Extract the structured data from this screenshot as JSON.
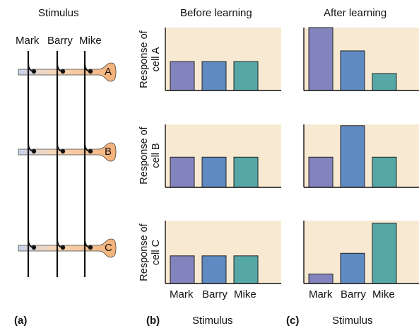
{
  "panel_a": {
    "title": "Stimulus",
    "neurons": [
      "Mark",
      "Barry",
      "Mike"
    ],
    "cells": [
      "A",
      "B",
      "C"
    ],
    "label": "(a)"
  },
  "panel_b": {
    "title": "Before learning",
    "label": "(b)",
    "xlabel": "Stimulus",
    "ticks": [
      "Mark",
      "Barry",
      "Mike"
    ]
  },
  "panel_c": {
    "title": "After learning",
    "label": "(c)",
    "xlabel": "Stimulus",
    "ticks": [
      "Mark",
      "Barry",
      "Mike"
    ]
  },
  "row_labels": [
    {
      "line1": "Response of",
      "line2": "cell A"
    },
    {
      "line1": "Response of",
      "line2": "cell B"
    },
    {
      "line1": "Response of",
      "line2": "cell C"
    }
  ],
  "colors": {
    "background": "#f8ead2",
    "mark": "#8384bd",
    "barry": "#5f8bc2",
    "mike": "#56a8a6",
    "axon": "#f4b176"
  },
  "chart_data": [
    {
      "type": "bar",
      "panel": "before",
      "cell": "A",
      "categories": [
        "Mark",
        "Barry",
        "Mike"
      ],
      "values": [
        0.46,
        0.46,
        0.46
      ],
      "ylim": [
        0,
        1
      ]
    },
    {
      "type": "bar",
      "panel": "after",
      "cell": "A",
      "categories": [
        "Mark",
        "Barry",
        "Mike"
      ],
      "values": [
        1.0,
        0.63,
        0.27
      ],
      "ylim": [
        0,
        1
      ]
    },
    {
      "type": "bar",
      "panel": "before",
      "cell": "B",
      "categories": [
        "Mark",
        "Barry",
        "Mike"
      ],
      "values": [
        0.48,
        0.48,
        0.48
      ],
      "ylim": [
        0,
        1
      ]
    },
    {
      "type": "bar",
      "panel": "after",
      "cell": "B",
      "categories": [
        "Mark",
        "Barry",
        "Mike"
      ],
      "values": [
        0.48,
        0.98,
        0.48
      ],
      "ylim": [
        0,
        1
      ]
    },
    {
      "type": "bar",
      "panel": "before",
      "cell": "C",
      "categories": [
        "Mark",
        "Barry",
        "Mike"
      ],
      "values": [
        0.44,
        0.44,
        0.44
      ],
      "ylim": [
        0,
        1
      ]
    },
    {
      "type": "bar",
      "panel": "after",
      "cell": "C",
      "categories": [
        "Mark",
        "Barry",
        "Mike"
      ],
      "values": [
        0.15,
        0.48,
        0.96
      ],
      "ylim": [
        0,
        1
      ]
    }
  ]
}
